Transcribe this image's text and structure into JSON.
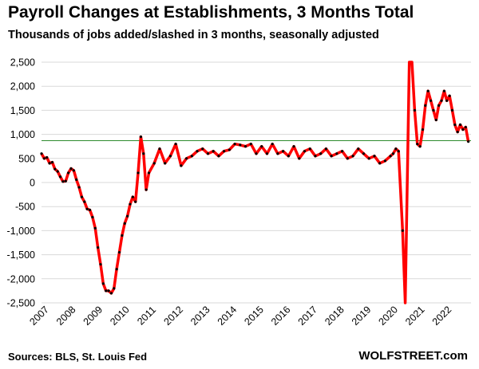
{
  "header": {
    "title": "Payroll Changes at Establishments, 3 Months Total",
    "subtitle": "Thousands of jobs added/slashed in 3 months, seasonally adjusted"
  },
  "footer": {
    "source": "Sources: BLS, St. Louis Fed",
    "brand": "WOLFSTREET.com"
  },
  "colors": {
    "line": "#ff0000",
    "markers": "#000000",
    "reference_line": "#2e8b2e",
    "grid": "#d9d9d9"
  },
  "chart_data": {
    "type": "line",
    "title": "Payroll Changes at Establishments, 3 Months Total",
    "subtitle": "Thousands of jobs added/slashed in 3 months, seasonally adjusted",
    "xlabel": "",
    "ylabel": "",
    "ylim": [
      -2500,
      2500
    ],
    "xlim": [
      2007.0,
      2023.0
    ],
    "grid": true,
    "legend": "none",
    "y_ticks": [
      2500,
      2000,
      1500,
      1000,
      500,
      0,
      -500,
      -1000,
      -1500,
      -2000,
      -2500
    ],
    "y_tick_labels": [
      "2,500",
      "2,000",
      "1,500",
      "1,000",
      "500",
      "0",
      "-500",
      "-1,000",
      "-1,500",
      "-2,000",
      "-2,500"
    ],
    "x_ticks": [
      2007,
      2008,
      2009,
      2010,
      2011,
      2012,
      2013,
      2014,
      2015,
      2016,
      2017,
      2018,
      2019,
      2020,
      2021,
      2022
    ],
    "x_tick_labels": [
      "2007",
      "2008",
      "2009",
      "2010",
      "2011",
      "2012",
      "2013",
      "2014",
      "2015",
      "2016",
      "2017",
      "2018",
      "2019",
      "2020",
      "2021",
      "2022"
    ],
    "reference_line": {
      "y": 870
    },
    "series": [
      {
        "x": [
          2007.0,
          2007.1,
          2007.2,
          2007.3,
          2007.4,
          2007.5,
          2007.6,
          2007.7,
          2007.8,
          2007.9,
          2008.0,
          2008.1,
          2008.2,
          2008.3,
          2008.4,
          2008.5,
          2008.6,
          2008.7,
          2008.8,
          2008.9,
          2009.0,
          2009.1,
          2009.2,
          2009.3,
          2009.4,
          2009.5,
          2009.6,
          2009.7,
          2009.8,
          2009.9,
          2010.0,
          2010.1,
          2010.2,
          2010.3,
          2010.4,
          2010.5,
          2010.6,
          2010.7,
          2010.8,
          2010.9,
          2011.0,
          2011.2,
          2011.4,
          2011.6,
          2011.8,
          2012.0,
          2012.2,
          2012.4,
          2012.6,
          2012.8,
          2013.0,
          2013.2,
          2013.4,
          2013.6,
          2013.8,
          2014.0,
          2014.2,
          2014.4,
          2014.6,
          2014.8,
          2015.0,
          2015.2,
          2015.4,
          2015.6,
          2015.8,
          2016.0,
          2016.2,
          2016.4,
          2016.6,
          2016.8,
          2017.0,
          2017.2,
          2017.4,
          2017.6,
          2017.8,
          2018.0,
          2018.2,
          2018.4,
          2018.6,
          2018.8,
          2019.0,
          2019.2,
          2019.4,
          2019.6,
          2019.8,
          2020.0,
          2020.1,
          2020.2,
          2020.3,
          2020.45,
          2020.55,
          2020.7,
          2020.8,
          2020.9,
          2021.0,
          2021.1,
          2021.2,
          2021.3,
          2021.4,
          2021.5,
          2021.6,
          2021.7,
          2021.8,
          2021.9,
          2022.0,
          2022.1,
          2022.2,
          2022.3,
          2022.4,
          2022.5,
          2022.6,
          2022.7,
          2022.8,
          2022.9
        ],
        "y": [
          600,
          500,
          520,
          400,
          420,
          280,
          230,
          120,
          20,
          30,
          200,
          290,
          250,
          60,
          -100,
          -300,
          -400,
          -550,
          -570,
          -720,
          -950,
          -1350,
          -1700,
          -2100,
          -2250,
          -2250,
          -2300,
          -2200,
          -1800,
          -1450,
          -1100,
          -850,
          -700,
          -450,
          -300,
          -400,
          200,
          950,
          600,
          -150,
          200,
          400,
          700,
          400,
          550,
          800,
          350,
          500,
          550,
          650,
          700,
          600,
          650,
          550,
          650,
          680,
          800,
          780,
          750,
          800,
          600,
          750,
          600,
          800,
          600,
          650,
          550,
          750,
          500,
          650,
          700,
          550,
          600,
          700,
          550,
          600,
          650,
          500,
          550,
          700,
          600,
          500,
          550,
          400,
          450,
          550,
          600,
          700,
          650,
          -1000,
          -2500,
          2500,
          2500,
          1500,
          800,
          750,
          1100,
          1600,
          1900,
          1700,
          1500,
          1300,
          1600,
          1700,
          1900,
          1700,
          1800,
          1500,
          1200,
          1050,
          1200,
          1100,
          1150,
          850
        ]
      }
    ]
  }
}
